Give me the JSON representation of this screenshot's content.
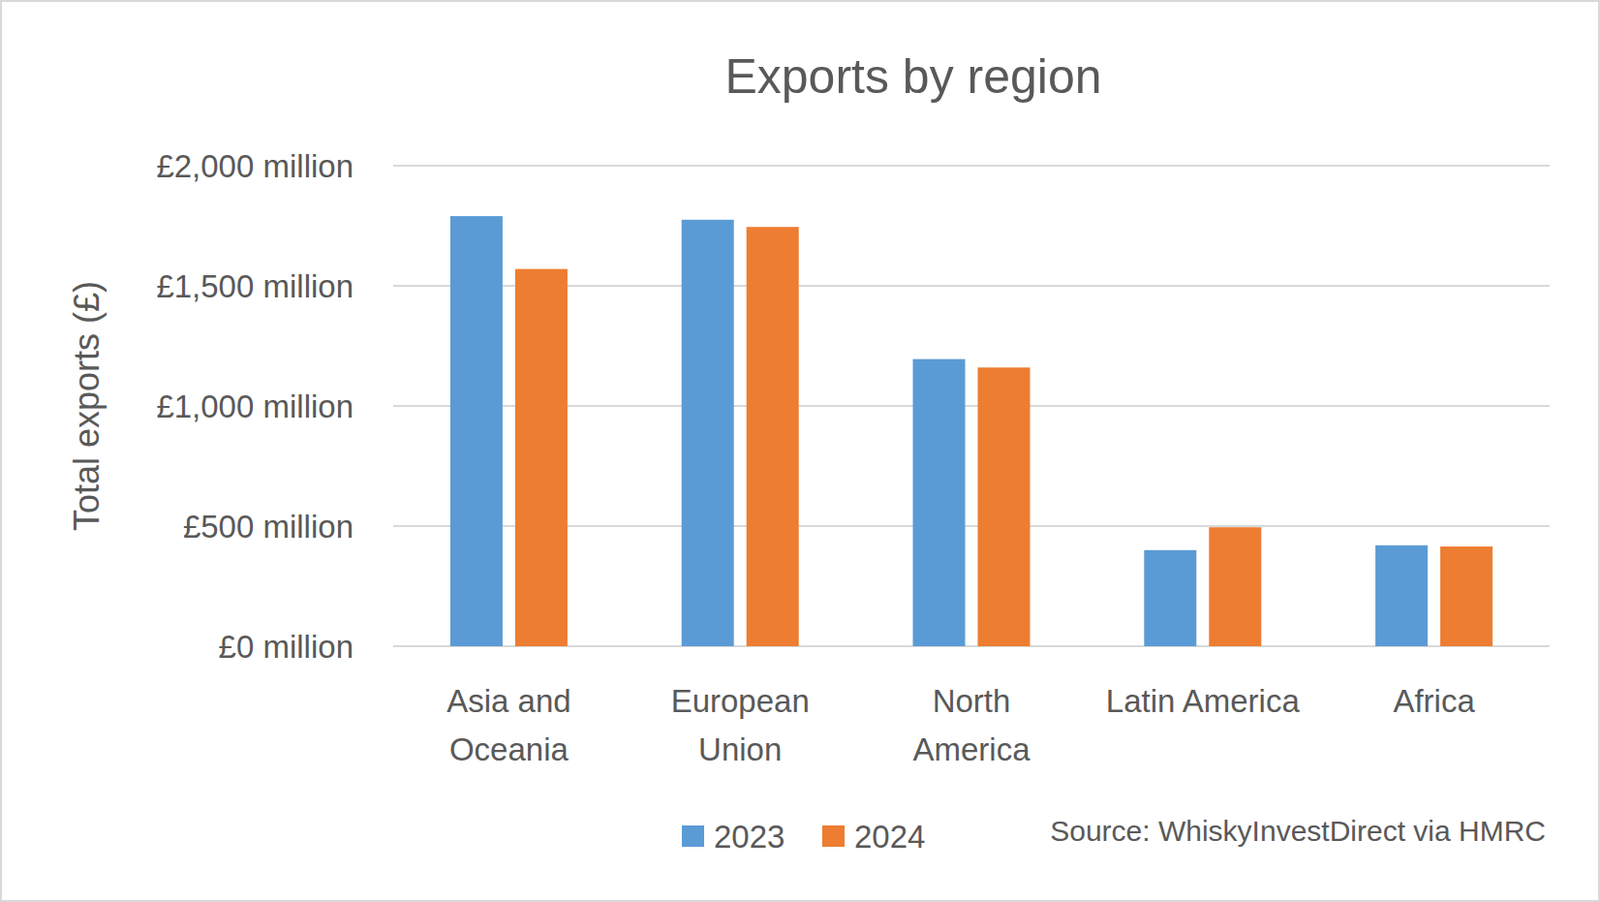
{
  "chart_data": {
    "type": "bar",
    "title": "Exports by region",
    "y_label": "Total exports (£)",
    "source": "Source: WhiskyInvestDirect via HMRC",
    "categories": [
      "Asia and\nOceania",
      "European\nUnion",
      "North\nAmerica",
      "Latin America",
      "Africa"
    ],
    "series": [
      {
        "name": "2023",
        "color": "#5b9bd5",
        "values": [
          1790,
          1775,
          1195,
          400,
          420
        ]
      },
      {
        "name": "2024",
        "color": "#ed7d31",
        "values": [
          1570,
          1745,
          1160,
          495,
          415
        ]
      }
    ],
    "ylim": [
      0,
      2000
    ],
    "yticks": [
      {
        "value": 0,
        "label": "£0 million"
      },
      {
        "value": 500,
        "label": "£500 million"
      },
      {
        "value": 1000,
        "label": "£1,000 million"
      },
      {
        "value": 1500,
        "label": "£1,500 million"
      },
      {
        "value": 2000,
        "label": "£2,000 million"
      }
    ],
    "grid": true,
    "legend": "bottom"
  }
}
